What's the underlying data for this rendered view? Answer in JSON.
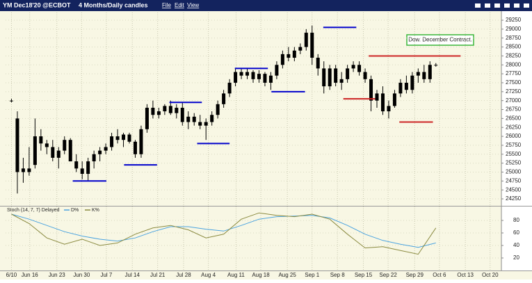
{
  "window": {
    "title": "YM Dec18'20 @ECBOT",
    "subtitle": "4 Months/Daily candles",
    "menu": [
      "File",
      "Edit",
      "View"
    ]
  },
  "chart_data": [
    {
      "type": "candlestick",
      "color": "#000000",
      "x": [
        0,
        1,
        2,
        3,
        4,
        5,
        6,
        7,
        8,
        9,
        10,
        11,
        12,
        13,
        14,
        15,
        16,
        17,
        18,
        19,
        20,
        21,
        22,
        23,
        24,
        25,
        26,
        27,
        28,
        29,
        30,
        31,
        32,
        33,
        34,
        35,
        36,
        37,
        38,
        39,
        40,
        41,
        42,
        43,
        44,
        45,
        46,
        47,
        48,
        49,
        50,
        51,
        52,
        53,
        54,
        55,
        56,
        57,
        58,
        59,
        60,
        61,
        62,
        63,
        64,
        65,
        66,
        67,
        68,
        69,
        70,
        71,
        72
      ],
      "open": [
        27000,
        26500,
        25000,
        25100,
        25200,
        26000,
        25800,
        25700,
        25400,
        25600,
        25900,
        25300,
        25100,
        24950,
        25300,
        25500,
        25600,
        25700,
        26000,
        25900,
        26050,
        25850,
        25500,
        26200,
        26800,
        26600,
        26700,
        26850,
        26650,
        26800,
        26400,
        26550,
        26400,
        26300,
        26400,
        26600,
        26900,
        27200,
        27500,
        27800,
        27700,
        27800,
        27600,
        27750,
        27500,
        27700,
        28000,
        28300,
        28200,
        28400,
        28500,
        28900,
        28200,
        27900,
        27400,
        27900,
        27500,
        27600,
        27900,
        28000,
        27800,
        27600,
        27000,
        27200,
        26700,
        26850,
        27200,
        27500,
        27300,
        27700,
        27800,
        27600,
        28000
      ],
      "high": [
        27050,
        26700,
        25400,
        25700,
        26500,
        26200,
        25900,
        25900,
        25700,
        26000,
        25950,
        25500,
        25300,
        25400,
        25600,
        25700,
        25800,
        26100,
        26200,
        26100,
        26100,
        25900,
        26300,
        26900,
        27000,
        26800,
        26900,
        27000,
        26900,
        26950,
        26700,
        26650,
        26600,
        26500,
        26700,
        27000,
        27300,
        27600,
        27900,
        27900,
        27900,
        27850,
        27850,
        27800,
        27800,
        28100,
        28400,
        28500,
        28500,
        28600,
        29000,
        29100,
        28300,
        28100,
        28000,
        28000,
        27800,
        28000,
        28100,
        28100,
        27900,
        27700,
        27300,
        27400,
        27000,
        27300,
        27600,
        27700,
        27800,
        27900,
        28000,
        28100,
        28050
      ],
      "low": [
        26950,
        24400,
        24700,
        24900,
        25100,
        25600,
        25500,
        25300,
        25100,
        25500,
        25300,
        25000,
        24800,
        24750,
        25100,
        25300,
        25500,
        25600,
        25800,
        25700,
        25800,
        25400,
        25400,
        26100,
        26500,
        26500,
        26600,
        26600,
        26500,
        26300,
        26200,
        26300,
        26200,
        25900,
        26300,
        26500,
        26800,
        27100,
        27400,
        27600,
        27600,
        27500,
        27500,
        27400,
        27300,
        27600,
        27900,
        28100,
        28100,
        28300,
        28400,
        28000,
        27700,
        27200,
        27300,
        27400,
        27300,
        27500,
        27800,
        27700,
        27500,
        26700,
        26800,
        26600,
        26500,
        26800,
        27100,
        27200,
        27200,
        27500,
        27500,
        27500,
        27950
      ],
      "close": [
        27000,
        25000,
        25100,
        25000,
        26000,
        25800,
        25700,
        25400,
        25600,
        25900,
        25300,
        25100,
        24950,
        25300,
        25500,
        25600,
        25700,
        26000,
        25900,
        26050,
        25850,
        25500,
        26200,
        26800,
        26600,
        26700,
        26850,
        26650,
        26800,
        26400,
        26550,
        26400,
        26300,
        26400,
        26600,
        26900,
        27200,
        27500,
        27800,
        27700,
        27800,
        27600,
        27750,
        27500,
        27700,
        28000,
        28300,
        28200,
        28400,
        28500,
        28900,
        28200,
        27900,
        27400,
        27900,
        27500,
        27600,
        27900,
        28000,
        27800,
        27600,
        27000,
        27200,
        26700,
        26850,
        27200,
        27500,
        27300,
        27700,
        27800,
        27600,
        28000,
        28000
      ],
      "xlim": [
        -1,
        83
      ],
      "xticks": [
        {
          "value": 0,
          "label": "6/10"
        },
        {
          "value": 3.1,
          "label": "Jun 16"
        },
        {
          "value": 7.7,
          "label": "Jun 23"
        },
        {
          "value": 11.9,
          "label": "Jun 30"
        },
        {
          "value": 16.1,
          "label": "Jul 7"
        },
        {
          "value": 20.5,
          "label": "Jul 14"
        },
        {
          "value": 24.8,
          "label": "Jul 21"
        },
        {
          "value": 29.2,
          "label": "Jul 28"
        },
        {
          "value": 33.4,
          "label": "Aug 4"
        },
        {
          "value": 38.1,
          "label": "Aug 11"
        },
        {
          "value": 42.3,
          "label": "Aug 18"
        },
        {
          "value": 46.8,
          "label": "Aug 25"
        },
        {
          "value": 51,
          "label": "Sep 1"
        },
        {
          "value": 55.3,
          "label": "Sep 8"
        },
        {
          "value": 59.7,
          "label": "Sep 15"
        },
        {
          "value": 63.9,
          "label": "Sep 22"
        },
        {
          "value": 68.4,
          "label": "Sep 29"
        },
        {
          "value": 72.6,
          "label": "Oct 6"
        },
        {
          "value": 77,
          "label": "Oct 13"
        },
        {
          "value": 81.2,
          "label": "Oct 20"
        }
      ],
      "ylim": [
        24075,
        29465
      ],
      "yticks": [
        24250,
        24500,
        24750,
        25000,
        25250,
        25500,
        25750,
        26000,
        26250,
        26500,
        26750,
        27000,
        27250,
        27500,
        27750,
        28000,
        28250,
        28500,
        28750,
        29000,
        29250
      ],
      "grid": true,
      "annotation": "Dow. December Contract.",
      "levels": [
        {
          "value": 24750,
          "x": [
            10.4,
            16.1
          ],
          "color": "#0000cc"
        },
        {
          "value": 25200,
          "x": [
            19.1,
            24.7
          ],
          "color": "#0000cc"
        },
        {
          "value": 26950,
          "x": [
            26.8,
            32.3
          ],
          "color": "#0000cc"
        },
        {
          "value": 25800,
          "x": [
            31.5,
            37
          ],
          "color": "#0000cc"
        },
        {
          "value": 27900,
          "x": [
            37.9,
            43.5
          ],
          "color": "#0000cc"
        },
        {
          "value": 27250,
          "x": [
            44.1,
            49.8
          ],
          "color": "#0000cc"
        },
        {
          "value": 29050,
          "x": [
            52.9,
            58.5
          ],
          "color": "#0000cc"
        },
        {
          "value": 27050,
          "x": [
            56.3,
            61.7
          ],
          "color": "#cc2222"
        },
        {
          "value": 28250,
          "x": [
            60.6,
            76.2
          ],
          "color": "#cc2222"
        },
        {
          "value": 26400,
          "x": [
            65.8,
            71.5
          ],
          "color": "#cc2222"
        }
      ]
    },
    {
      "type": "line",
      "title": "Stoch (14, 7, 7) Delayed",
      "x": [
        0,
        3,
        6,
        9,
        12,
        15,
        18,
        21,
        24,
        27,
        30,
        33,
        36,
        39,
        42,
        45,
        48,
        51,
        54,
        57,
        60,
        63,
        66,
        69,
        72
      ],
      "series": [
        {
          "name": "D%",
          "color": "#4aa3e0",
          "values": [
            90,
            82,
            72,
            62,
            55,
            50,
            47,
            52,
            62,
            70,
            70,
            66,
            63,
            72,
            82,
            86,
            87,
            88,
            84,
            72,
            58,
            48,
            42,
            37,
            44
          ]
        },
        {
          "name": "K%",
          "color": "#8a8a40",
          "values": [
            90,
            75,
            52,
            42,
            50,
            40,
            44,
            58,
            68,
            72,
            65,
            52,
            58,
            82,
            92,
            88,
            86,
            90,
            82,
            58,
            36,
            38,
            32,
            26,
            68
          ]
        }
      ],
      "xlim": [
        -1,
        83
      ],
      "ylim": [
        0,
        100
      ],
      "yticks": [
        20,
        40,
        60,
        80
      ],
      "grid": true
    }
  ]
}
